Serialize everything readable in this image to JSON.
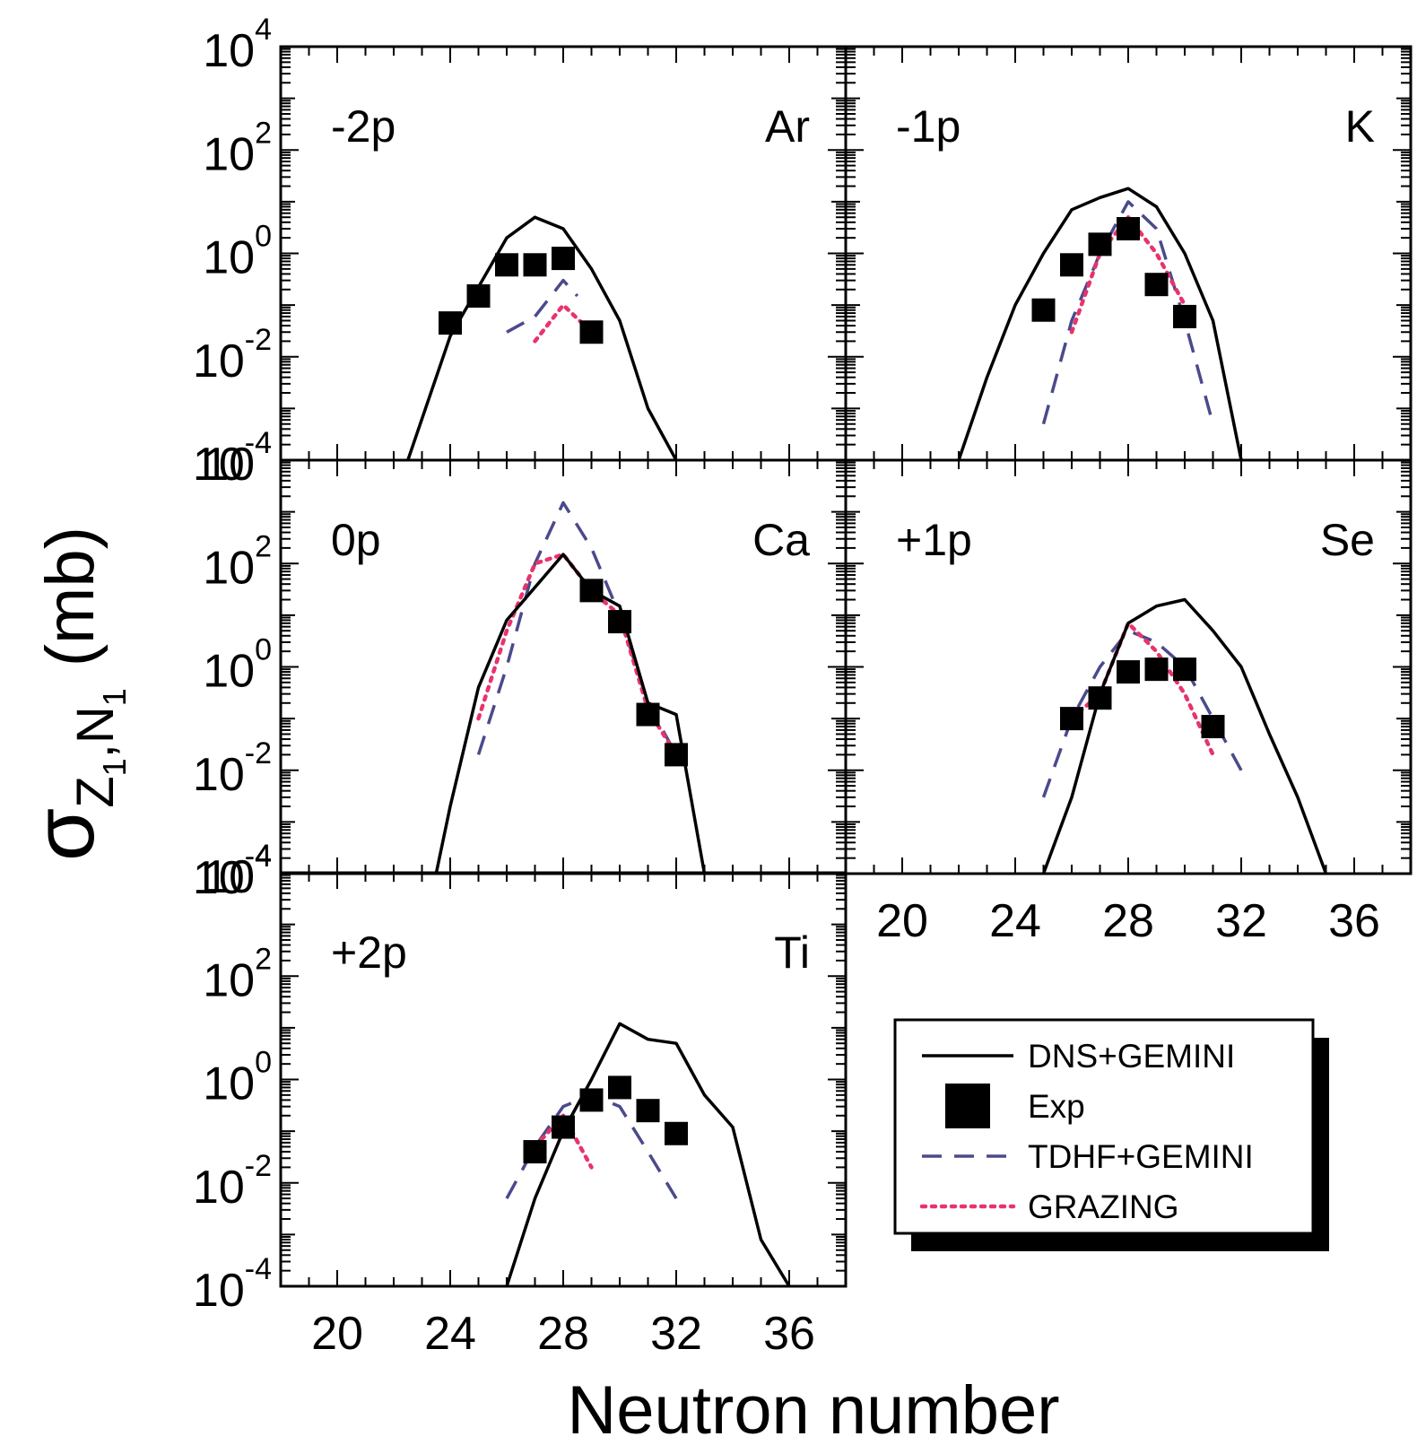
{
  "chart_data": {
    "type": "line",
    "y_axis_title": "σ",
    "y_axis_subscript": "Z",
    "y_axis_subsub1": "1",
    "y_axis_subscript_sep": ",N",
    "y_axis_subsub2": "1",
    "y_axis_unit": "(mb)",
    "x_axis_title": "Neutron number",
    "xlim": [
      18,
      38
    ],
    "ylim": [
      0.0001,
      10000
    ],
    "y_scale": "log",
    "x_ticks": [
      "20",
      "24",
      "28",
      "32",
      "36"
    ],
    "y_ticks": [
      {
        "base": "10",
        "exp": "4"
      },
      {
        "base": "10",
        "exp": "2"
      },
      {
        "base": "10",
        "exp": "0"
      },
      {
        "base": "10",
        "exp": "-2"
      },
      {
        "base": "10",
        "exp": "-4"
      }
    ],
    "legend": {
      "position": "bottom-right",
      "entries": [
        {
          "label": "DNS+GEMINI",
          "style": "solid",
          "color": "#000000"
        },
        {
          "label": "Exp",
          "style": "square",
          "color": "#000000"
        },
        {
          "label": "TDHF+GEMINI",
          "style": "dashed",
          "color": "#4a4a8c"
        },
        {
          "label": "GRAZING",
          "style": "dotted",
          "color": "#e8336b"
        }
      ]
    },
    "panels": [
      {
        "channel": "-2p",
        "element": "Ar",
        "dns": [
          [
            22.5,
            0.0001
          ],
          [
            24,
            0.025
          ],
          [
            26,
            2.0
          ],
          [
            27,
            5.0
          ],
          [
            28,
            3.0
          ],
          [
            29,
            0.5
          ],
          [
            30,
            0.05
          ],
          [
            31,
            0.001
          ],
          [
            32,
            0.0001
          ]
        ],
        "exp": [
          [
            24,
            0.045
          ],
          [
            25,
            0.15
          ],
          [
            26,
            0.6
          ],
          [
            27,
            0.6
          ],
          [
            28,
            0.8
          ],
          [
            29,
            0.03
          ]
        ],
        "tdhf": [
          [
            26,
            0.03
          ],
          [
            27,
            0.06
          ],
          [
            28,
            0.3
          ],
          [
            28.5,
            0.15
          ]
        ],
        "grazing": [
          [
            27,
            0.02
          ],
          [
            28,
            0.1
          ],
          [
            29,
            0.03
          ]
        ]
      },
      {
        "channel": "-1p",
        "element": "K",
        "dns": [
          [
            22,
            0.0001
          ],
          [
            23,
            0.004
          ],
          [
            24,
            0.1
          ],
          [
            25,
            1.0
          ],
          [
            26,
            7.0
          ],
          [
            27,
            12.0
          ],
          [
            28,
            18.0
          ],
          [
            29,
            8.0
          ],
          [
            30,
            1.0
          ],
          [
            31,
            0.05
          ],
          [
            32,
            0.0001
          ]
        ],
        "exp": [
          [
            25,
            0.08
          ],
          [
            26,
            0.6
          ],
          [
            27,
            1.5
          ],
          [
            28,
            3.0
          ],
          [
            29,
            0.25
          ],
          [
            30,
            0.06
          ]
        ],
        "tdhf": [
          [
            25,
            0.0005
          ],
          [
            26,
            0.05
          ],
          [
            27,
            1.0
          ],
          [
            28,
            10.0
          ],
          [
            29,
            3.0
          ],
          [
            30,
            0.05
          ],
          [
            31,
            0.0005
          ]
        ],
        "grazing": [
          [
            26,
            0.03
          ],
          [
            27,
            1.0
          ],
          [
            28,
            5.0
          ],
          [
            29,
            1.0
          ],
          [
            30,
            0.1
          ]
        ]
      },
      {
        "channel": "0p",
        "element": "Ca",
        "dns": [
          [
            23.5,
            0.0001
          ],
          [
            24,
            0.002
          ],
          [
            25,
            0.4
          ],
          [
            26,
            8.0
          ],
          [
            28,
            150.0
          ],
          [
            29,
            30.0
          ],
          [
            30,
            15.0
          ],
          [
            31,
            0.2
          ],
          [
            32,
            0.12
          ],
          [
            33,
            0.0001
          ]
        ],
        "exp": [
          [
            29,
            30.0
          ],
          [
            30,
            7.5
          ],
          [
            31,
            0.12
          ],
          [
            32,
            0.02
          ]
        ],
        "tdhf": [
          [
            25,
            0.02
          ],
          [
            26,
            1.0
          ],
          [
            27,
            100.0
          ],
          [
            28,
            1500.0
          ],
          [
            29,
            200.0
          ],
          [
            30,
            10.0
          ],
          [
            31,
            0.2
          ],
          [
            32,
            0.02
          ]
        ],
        "grazing": [
          [
            25,
            0.1
          ],
          [
            26,
            5.0
          ],
          [
            27,
            100.0
          ],
          [
            28,
            150.0
          ],
          [
            29,
            30.0
          ],
          [
            30,
            10.0
          ],
          [
            31,
            0.15
          ],
          [
            32,
            0.02
          ]
        ]
      },
      {
        "channel": "+1p",
        "element": "Se",
        "dns": [
          [
            25,
            0.0001
          ],
          [
            26,
            0.003
          ],
          [
            27,
            0.3
          ],
          [
            28,
            7.0
          ],
          [
            29,
            15.0
          ],
          [
            30,
            20.0
          ],
          [
            31,
            5.0
          ],
          [
            32,
            1.0
          ],
          [
            33,
            0.05
          ],
          [
            34,
            0.003
          ],
          [
            35,
            0.0001
          ]
        ],
        "exp": [
          [
            26,
            0.1
          ],
          [
            27,
            0.25
          ],
          [
            28,
            0.8
          ],
          [
            29,
            0.9
          ],
          [
            30,
            0.9
          ],
          [
            31,
            0.07
          ]
        ],
        "tdhf": [
          [
            25,
            0.003
          ],
          [
            26,
            0.1
          ],
          [
            27,
            1.0
          ],
          [
            28,
            5.0
          ],
          [
            29,
            3.0
          ],
          [
            30,
            1.0
          ],
          [
            31,
            0.1
          ],
          [
            32,
            0.01
          ]
        ],
        "grazing": [
          [
            26,
            0.1
          ],
          [
            27,
            0.3
          ],
          [
            28,
            7.0
          ],
          [
            29,
            2.0
          ],
          [
            30,
            0.3
          ],
          [
            31,
            0.02
          ]
        ]
      },
      {
        "channel": "+2p",
        "element": "Ti",
        "dns": [
          [
            26,
            0.0001
          ],
          [
            27,
            0.005
          ],
          [
            28,
            0.1
          ],
          [
            29,
            1.0
          ],
          [
            30,
            12.0
          ],
          [
            31,
            6.0
          ],
          [
            32,
            5.0
          ],
          [
            33,
            0.5
          ],
          [
            34,
            0.12
          ],
          [
            35,
            0.0008
          ],
          [
            36,
            0.0001
          ]
        ],
        "exp": [
          [
            27,
            0.04
          ],
          [
            28,
            0.12
          ],
          [
            29,
            0.4
          ],
          [
            30,
            0.7
          ],
          [
            31,
            0.25
          ],
          [
            32,
            0.09
          ]
        ],
        "tdhf": [
          [
            26,
            0.005
          ],
          [
            27,
            0.05
          ],
          [
            28,
            0.3
          ],
          [
            29,
            0.5
          ],
          [
            30,
            0.3
          ],
          [
            31,
            0.04
          ],
          [
            32,
            0.005
          ]
        ],
        "grazing": [
          [
            27,
            0.05
          ],
          [
            28,
            0.2
          ],
          [
            29,
            0.02
          ]
        ]
      }
    ]
  }
}
